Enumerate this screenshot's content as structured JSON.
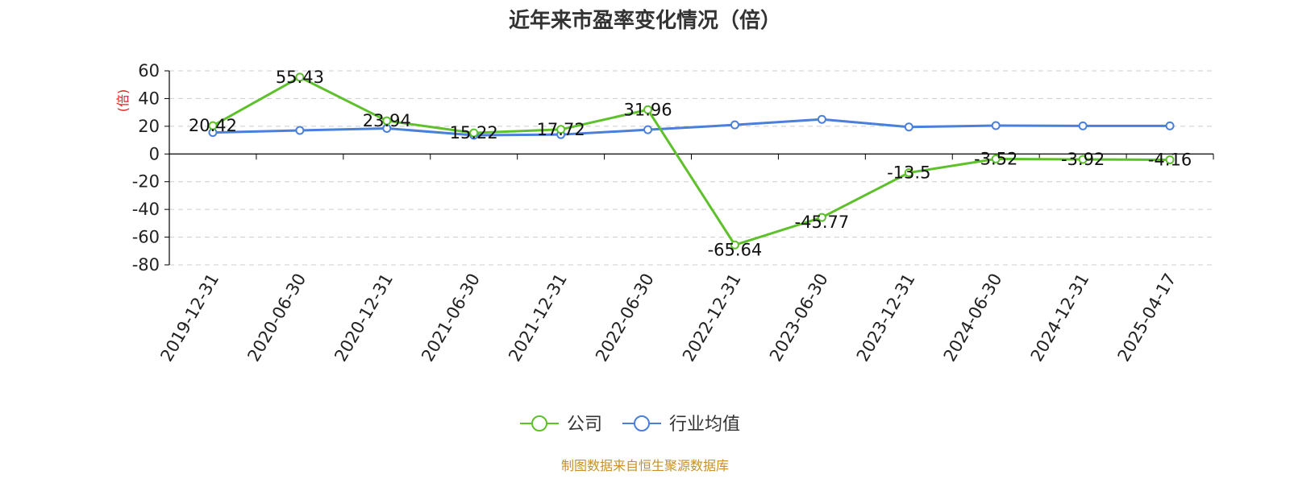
{
  "chart_data": {
    "type": "line",
    "title": "近年来市盈率变化情况（倍）",
    "ylabel": "(倍)",
    "xlabel": "",
    "ylim": [
      -80,
      60
    ],
    "yticks": [
      60,
      40,
      20,
      0,
      -20,
      -40,
      -60,
      -80
    ],
    "grid": true,
    "legend_position": "bottom-center",
    "categories": [
      "2019-12-31",
      "2020-06-30",
      "2020-12-31",
      "2021-06-30",
      "2021-12-31",
      "2022-06-30",
      "2022-12-31",
      "2023-06-30",
      "2023-12-31",
      "2024-06-30",
      "2024-12-31",
      "2025-04-17"
    ],
    "series": [
      {
        "name": "公司",
        "color": "#5ec12c",
        "values": [
          20.42,
          55.43,
          23.94,
          15.22,
          17.72,
          31.96,
          -65.64,
          -45.77,
          -13.5,
          -3.52,
          -3.92,
          -4.16
        ],
        "labels": [
          "20.42",
          "55.43",
          "23.94",
          "15.22",
          "17.72",
          "31.96",
          "-65.64",
          "-45.77",
          "-13.5",
          "-3.52",
          "-3.92",
          "-4.16"
        ]
      },
      {
        "name": "行业均值",
        "color": "#4a7fdb",
        "values": [
          15.5,
          17.0,
          18.5,
          13.5,
          14.0,
          17.5,
          21.0,
          25.0,
          19.5,
          20.5,
          20.3,
          20.3
        ]
      }
    ]
  },
  "source": {
    "text": "制图数据来自恒生聚源数据库",
    "color": "#c8902a"
  }
}
